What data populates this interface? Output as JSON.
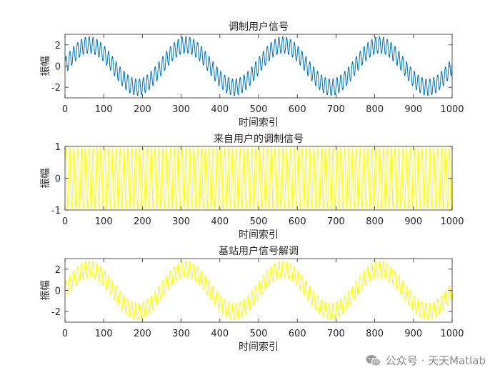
{
  "chart_data": [
    {
      "type": "line",
      "title": "调制用户信号",
      "xlabel": "时间索引",
      "ylabel": "振幅",
      "xlim": [
        0,
        1000
      ],
      "ylim": [
        -3,
        3
      ],
      "xticks": [
        0,
        100,
        200,
        300,
        400,
        500,
        600,
        700,
        800,
        900,
        1000
      ],
      "yticks": [
        -2,
        0,
        2
      ],
      "grid": false,
      "color": "#0072BD",
      "series": [
        {
          "signal": "sum_of_sines",
          "x_range": [
            1,
            1000
          ],
          "components": [
            {
              "amplitude": 2,
              "cycles_per_sample": 0.004,
              "phase": 0
            },
            {
              "amplitude": 0.8,
              "cycles_per_sample": 0.1,
              "phase": 0
            }
          ]
        }
      ]
    },
    {
      "type": "line",
      "title": "来自用户的调制信号",
      "xlabel": "时间索引",
      "ylabel": "振幅",
      "xlim": [
        0,
        1000
      ],
      "ylim": [
        -1,
        1
      ],
      "xticks": [
        0,
        100,
        200,
        300,
        400,
        500,
        600,
        700,
        800,
        900,
        1000
      ],
      "yticks": [
        -1,
        0,
        1
      ],
      "grid": false,
      "color": "#FFFF00",
      "series": [
        {
          "signal": "sum_of_sines",
          "x_range": [
            1,
            1000
          ],
          "components": [
            {
              "amplitude": 1,
              "cycles_per_sample": 0.1,
              "phase": 0
            }
          ]
        }
      ]
    },
    {
      "type": "line",
      "title": "基站用户信号解调",
      "xlabel": "时间索引",
      "ylabel": "振幅",
      "xlim": [
        0,
        1000
      ],
      "ylim": [
        -3,
        3
      ],
      "xticks": [
        0,
        100,
        200,
        300,
        400,
        500,
        600,
        700,
        800,
        900,
        1000
      ],
      "yticks": [
        -2,
        0,
        2
      ],
      "grid": false,
      "color": "#FFFF00",
      "series": [
        {
          "signal": "sum_of_sines",
          "x_range": [
            1,
            1000
          ],
          "components": [
            {
              "amplitude": 2,
              "cycles_per_sample": 0.004,
              "phase": 0
            },
            {
              "amplitude": 0.8,
              "cycles_per_sample": 0.1,
              "phase": 0
            }
          ]
        }
      ]
    }
  ],
  "watermark": {
    "text": "公众号 · 天天Matlab",
    "icon": "wechat-icon",
    "color": "#8a8a8a"
  }
}
